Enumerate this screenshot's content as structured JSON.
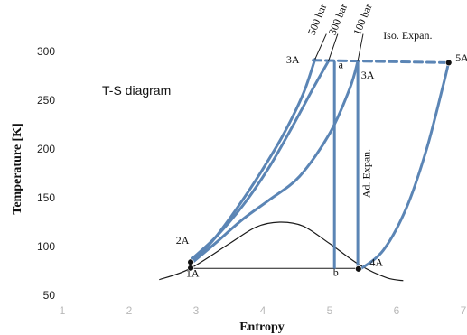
{
  "chart_data": {
    "type": "line",
    "title": "T-S diagram",
    "xlabel": "Entropy",
    "ylabel": "Temperature  [K]",
    "xlim": [
      1,
      7
    ],
    "ylim": [
      50,
      300
    ],
    "xticks": [
      "1",
      "2",
      "3",
      "4",
      "5",
      "6",
      "7"
    ],
    "yticks": [
      "50",
      "100",
      "150",
      "200",
      "250",
      "300"
    ],
    "grid": false,
    "isobar_labels": [
      "500 bar",
      "300 bar",
      "100 bar"
    ],
    "series": [
      {
        "name": "500 bar",
        "points": [
          [
            2.92,
            84
          ],
          [
            3.25,
            106
          ],
          [
            3.6,
            138
          ],
          [
            3.95,
            174
          ],
          [
            4.3,
            214
          ],
          [
            4.6,
            256
          ],
          [
            4.78,
            292
          ]
        ]
      },
      {
        "name": "300 bar",
        "points": [
          [
            2.95,
            88
          ],
          [
            3.3,
            110
          ],
          [
            3.7,
            142
          ],
          [
            4.1,
            182
          ],
          [
            4.45,
            224
          ],
          [
            4.75,
            262
          ],
          [
            4.98,
            290
          ]
        ]
      },
      {
        "name": "100 bar",
        "points": [
          [
            2.97,
            85
          ],
          [
            3.3,
            104
          ],
          [
            3.7,
            128
          ],
          [
            4.1,
            148
          ],
          [
            4.55,
            172
          ],
          [
            5.0,
            216
          ],
          [
            5.3,
            262
          ],
          [
            5.42,
            290
          ]
        ]
      },
      {
        "name": "",
        "points": [
          [
            2.45,
            66
          ],
          [
            2.9,
            77
          ],
          [
            3.5,
            103
          ],
          [
            3.9,
            120
          ],
          [
            4.25,
            125
          ],
          [
            4.6,
            121
          ],
          [
            5.0,
            103
          ],
          [
            5.45,
            81
          ],
          [
            5.85,
            68
          ],
          [
            6.1,
            65
          ]
        ]
      },
      {
        "name": "",
        "points": [
          [
            2.92,
            77.5
          ],
          [
            5.45,
            77.5
          ]
        ]
      },
      {
        "name": "",
        "points": [
          [
            5.07,
            289
          ],
          [
            5.07,
            78
          ]
        ]
      },
      {
        "name": "",
        "points": [
          [
            5.42,
            289
          ],
          [
            5.42,
            76
          ]
        ]
      },
      {
        "name": "",
        "points": [
          [
            5.44,
            76
          ],
          [
            5.8,
            96
          ],
          [
            6.15,
            140
          ],
          [
            6.45,
            200
          ],
          [
            6.7,
            266
          ],
          [
            6.78,
            289
          ]
        ]
      },
      {
        "name": "",
        "points": [
          [
            4.75,
            291
          ],
          [
            6.8,
            288.5
          ]
        ]
      }
    ],
    "annotations": [
      {
        "text": "3A",
        "x": 4.35,
        "y": 288
      },
      {
        "text": "a",
        "x": 5.13,
        "y": 283
      },
      {
        "text": "3A",
        "x": 5.47,
        "y": 272
      },
      {
        "text": "5A",
        "x": 6.88,
        "y": 290
      },
      {
        "text": "Iso. Expan.",
        "x": 5.8,
        "y": 313
      },
      {
        "text": "Ad. Expan.",
        "x": 5.6,
        "y": 175
      },
      {
        "text": "2A",
        "x": 2.7,
        "y": 103
      },
      {
        "text": "1A",
        "x": 2.85,
        "y": 69
      },
      {
        "text": "b",
        "x": 5.05,
        "y": 70
      },
      {
        "text": "4A",
        "x": 5.6,
        "y": 80
      }
    ],
    "markers": [
      {
        "x": 2.92,
        "y": 84
      },
      {
        "x": 2.92,
        "y": 78
      },
      {
        "x": 5.43,
        "y": 77
      },
      {
        "x": 6.78,
        "y": 288.5
      }
    ]
  }
}
